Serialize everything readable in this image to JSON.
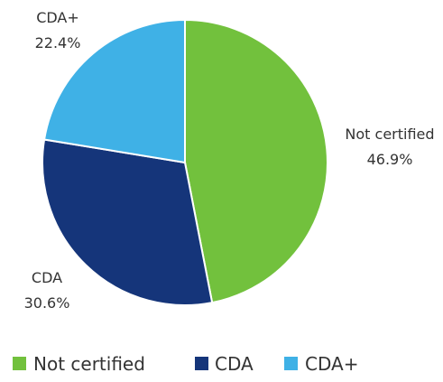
{
  "chart_data": {
    "type": "pie",
    "slices": [
      {
        "label": "Not certified",
        "value": 46.9,
        "value_label": "46.9%",
        "color": "#72c13d"
      },
      {
        "label": "CDA",
        "value": 30.6,
        "value_label": "30.6%",
        "color": "#15357a"
      },
      {
        "label": "CDA+",
        "value": 22.4,
        "value_label": "22.4%",
        "color": "#3fb1e6"
      }
    ],
    "start_angle": "top (12 o'clock), clockwise",
    "legend_position": "bottom",
    "title": ""
  }
}
